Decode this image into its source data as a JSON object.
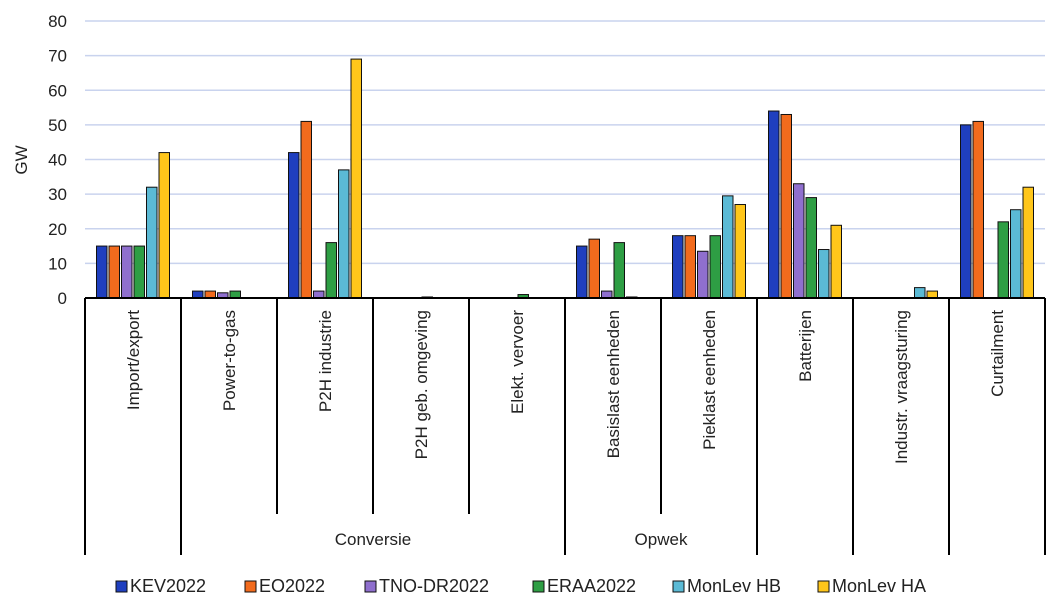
{
  "chart_data": {
    "type": "bar",
    "ylabel": "GW",
    "ylim": [
      0,
      80
    ],
    "yticks": [
      0,
      10,
      20,
      30,
      40,
      50,
      60,
      70,
      80
    ],
    "grid": true,
    "legend_position": "bottom",
    "categories": [
      "Import/export",
      "Power-to-gas",
      "P2H industrie",
      "P2H geb. omgeving",
      "Elekt. vervoer",
      "Basislast eenheden",
      "Pieklast eenheden",
      "Batterijen",
      "Industr. vraagsturing",
      "Curtailment"
    ],
    "groups": [
      {
        "label": "Conversie",
        "start": 1,
        "end": 4
      },
      {
        "label": "Opwek",
        "start": 5,
        "end": 6
      }
    ],
    "series": [
      {
        "name": "KEV2022",
        "color": "#1f3fbf",
        "values": [
          15,
          2,
          42,
          0,
          0,
          15,
          18,
          54,
          0,
          50
        ]
      },
      {
        "name": "EO2022",
        "color": "#f26b1d",
        "values": [
          15,
          2,
          51,
          0,
          0,
          17,
          18,
          53,
          0,
          51
        ]
      },
      {
        "name": "TNO-DR2022",
        "color": "#8f6fce",
        "values": [
          15,
          1.5,
          2,
          0,
          0,
          2,
          13.5,
          33,
          0,
          0
        ]
      },
      {
        "name": "ERAA2022",
        "color": "#2e9e44",
        "values": [
          15,
          2,
          16,
          0.3,
          1,
          16,
          18,
          29,
          0,
          22
        ]
      },
      {
        "name": "MonLev HB",
        "color": "#5bbad5",
        "values": [
          32,
          0,
          37,
          0,
          0,
          0.3,
          29.5,
          14,
          3,
          25.5
        ]
      },
      {
        "name": "MonLev HA",
        "color": "#ffc61a",
        "values": [
          42,
          0,
          69,
          0,
          0,
          0,
          27,
          21,
          2,
          32
        ]
      }
    ]
  }
}
